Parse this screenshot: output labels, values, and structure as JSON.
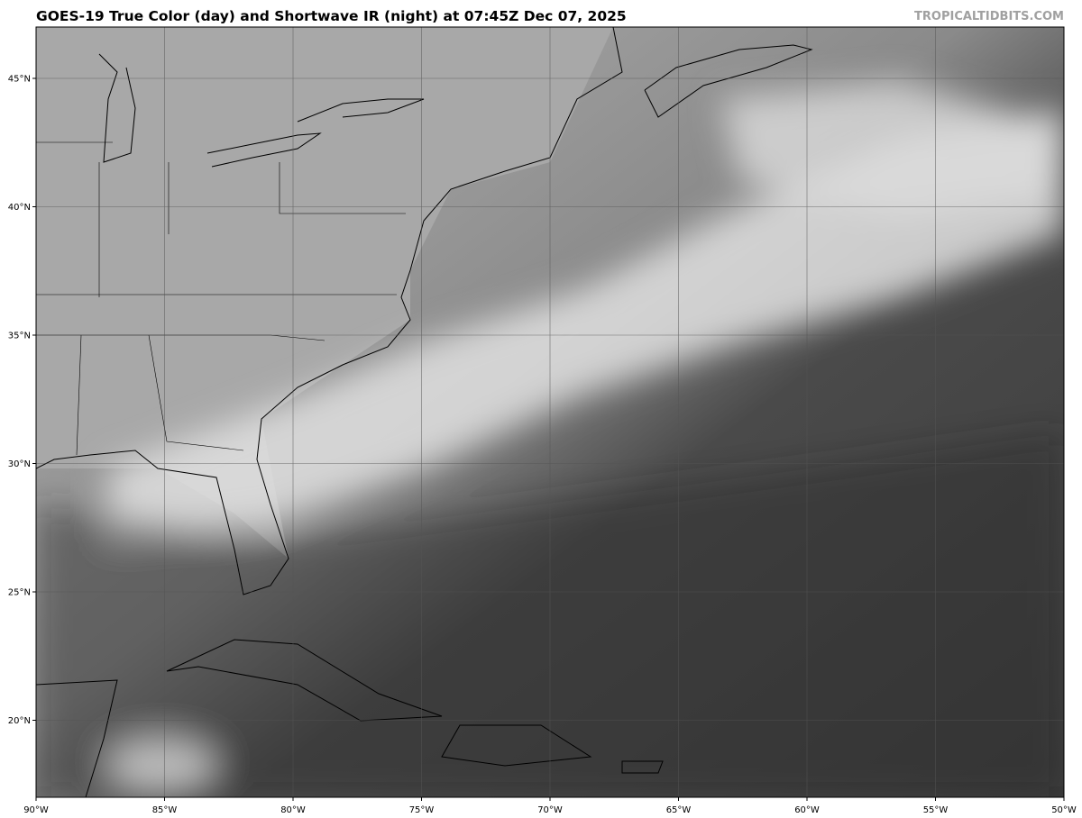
{
  "header": {
    "title": "GOES-19 True Color (day) and Shortwave IR (night) at 07:45Z Dec 07, 2025",
    "credit": "TROPICALTIDBITS.COM"
  },
  "map": {
    "imagery": "satellite grayscale",
    "extent": {
      "lon": [
        -90,
        -50
      ],
      "lat": [
        17,
        47
      ]
    },
    "lat_ticks": [
      {
        "value": 45,
        "label": "45°N"
      },
      {
        "value": 40,
        "label": "40°N"
      },
      {
        "value": 35,
        "label": "35°N"
      },
      {
        "value": 30,
        "label": "30°N"
      },
      {
        "value": 25,
        "label": "25°N"
      },
      {
        "value": 20,
        "label": "20°N"
      }
    ],
    "lon_ticks": [
      {
        "value": -90,
        "label": "90°W"
      },
      {
        "value": -85,
        "label": "85°W"
      },
      {
        "value": -80,
        "label": "80°W"
      },
      {
        "value": -75,
        "label": "75°W"
      },
      {
        "value": -70,
        "label": "70°W"
      },
      {
        "value": -65,
        "label": "65°W"
      },
      {
        "value": -60,
        "label": "60°W"
      },
      {
        "value": -55,
        "label": "55°W"
      },
      {
        "value": -50,
        "label": "50°W"
      }
    ]
  }
}
